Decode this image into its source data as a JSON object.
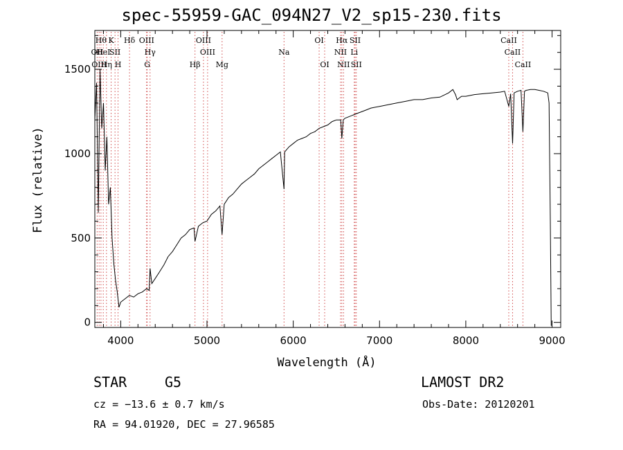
{
  "title": "spec-55959-GAC_094N27_V2_sp15-230.fits",
  "info": {
    "object_class": "STAR",
    "subclass": "G5",
    "survey": "LAMOST DR2",
    "cz": "cz = −13.6 ± 0.7 km/s",
    "obs_date": "Obs-Date: 20120201",
    "ra_dec": "RA =  94.01920, DEC =  27.96585"
  },
  "chart_data": {
    "type": "line",
    "title": "spec-55959-GAC_094N27_V2_sp15-230.fits",
    "xlabel": "Wavelength (Å)",
    "ylabel": "Flux (relative)",
    "xlim": [
      3700,
      9100
    ],
    "ylim": [
      -30,
      1730
    ],
    "x_ticks": [
      4000,
      5000,
      6000,
      7000,
      8000,
      9000
    ],
    "y_ticks": [
      0,
      500,
      1000,
      1500
    ],
    "line_color": "#000000",
    "marker_color": "#d04848",
    "grid": false,
    "legend": "none",
    "series": [
      {
        "x": [
          3700,
          3720,
          3740,
          3760,
          3780,
          3800,
          3820,
          3840,
          3860,
          3880,
          3900,
          3920,
          3940,
          3960,
          3980,
          4000,
          4050,
          4100,
          4150,
          4200,
          4250,
          4300,
          4330,
          4340,
          4360,
          4400,
          4450,
          4500,
          4550,
          4600,
          4650,
          4700,
          4750,
          4800,
          4850,
          4861,
          4900,
          4950,
          5000,
          5050,
          5100,
          5150,
          5175,
          5200,
          5250,
          5300,
          5350,
          5400,
          5450,
          5500,
          5550,
          5600,
          5650,
          5700,
          5750,
          5800,
          5850,
          5893,
          5900,
          5950,
          6000,
          6050,
          6100,
          6150,
          6200,
          6250,
          6300,
          6350,
          6400,
          6450,
          6500,
          6550,
          6563,
          6580,
          6600,
          6650,
          6700,
          6750,
          6800,
          6850,
          6900,
          6950,
          7000,
          7100,
          7200,
          7300,
          7400,
          7500,
          7600,
          7700,
          7800,
          7850,
          7880,
          7900,
          7950,
          8000,
          8100,
          8200,
          8300,
          8400,
          8450,
          8498,
          8520,
          8542,
          8560,
          8600,
          8640,
          8662,
          8680,
          8700,
          8750,
          8800,
          8850,
          8900,
          8950,
          8965,
          8980,
          8990
        ],
        "y": [
          1200,
          1420,
          650,
          1500,
          1150,
          1300,
          900,
          1100,
          700,
          800,
          500,
          350,
          250,
          180,
          90,
          120,
          140,
          160,
          150,
          170,
          180,
          200,
          190,
          320,
          230,
          260,
          300,
          340,
          390,
          420,
          460,
          500,
          520,
          550,
          560,
          480,
          570,
          590,
          600,
          640,
          660,
          690,
          520,
          700,
          740,
          760,
          790,
          820,
          840,
          860,
          880,
          910,
          930,
          950,
          970,
          990,
          1010,
          790,
          1010,
          1040,
          1060,
          1080,
          1090,
          1100,
          1120,
          1130,
          1150,
          1160,
          1170,
          1190,
          1200,
          1200,
          1090,
          1200,
          1210,
          1220,
          1230,
          1240,
          1250,
          1260,
          1270,
          1275,
          1280,
          1290,
          1300,
          1310,
          1320,
          1320,
          1330,
          1335,
          1360,
          1380,
          1350,
          1320,
          1340,
          1340,
          1350,
          1355,
          1360,
          1365,
          1370,
          1280,
          1355,
          1060,
          1360,
          1370,
          1375,
          1130,
          1370,
          1375,
          1380,
          1380,
          1375,
          1370,
          1360,
          1300,
          600,
          -20
        ]
      }
    ],
    "line_markers": [
      {
        "x": 3727,
        "label": "OII",
        "row": 1
      },
      {
        "x": 3750,
        "label": "OIII",
        "row": 2
      },
      {
        "x": 3771,
        "label": "Hθ",
        "row": 0
      },
      {
        "x": 3798,
        "label": "HeI",
        "row": 1
      },
      {
        "x": 3835,
        "label": "Hη",
        "row": 2
      },
      {
        "x": 3889,
        "label": "K",
        "row": 0
      },
      {
        "x": 3934,
        "label": "SII",
        "row": 1
      },
      {
        "x": 3969,
        "label": "H",
        "row": 2
      },
      {
        "x": 4102,
        "label": "Hδ",
        "row": 0
      },
      {
        "x": 4300,
        "label": "OIII",
        "row": 0
      },
      {
        "x": 4340,
        "label": "Hγ",
        "row": 1
      },
      {
        "x": 4307,
        "label": "G",
        "row": 2
      },
      {
        "x": 4861,
        "label": "Hβ",
        "row": 2
      },
      {
        "x": 4959,
        "label": "OIII",
        "row": 0
      },
      {
        "x": 5007,
        "label": "OIII",
        "row": 1
      },
      {
        "x": 5175,
        "label": "Mg",
        "row": 2
      },
      {
        "x": 5893,
        "label": "Na",
        "row": 1
      },
      {
        "x": 6300,
        "label": "OI",
        "row": 0
      },
      {
        "x": 6364,
        "label": "OI",
        "row": 2
      },
      {
        "x": 6548,
        "label": "NII",
        "row": 1
      },
      {
        "x": 6563,
        "label": "Hα",
        "row": 0
      },
      {
        "x": 6583,
        "label": "NII",
        "row": 2
      },
      {
        "x": 6707,
        "label": "Li",
        "row": 1
      },
      {
        "x": 6717,
        "label": "SII",
        "row": 0
      },
      {
        "x": 6731,
        "label": "SII",
        "row": 2
      },
      {
        "x": 8498,
        "label": "CaII",
        "row": 0
      },
      {
        "x": 8542,
        "label": "CaII",
        "row": 1
      },
      {
        "x": 8662,
        "label": "CaII",
        "row": 2
      }
    ]
  }
}
